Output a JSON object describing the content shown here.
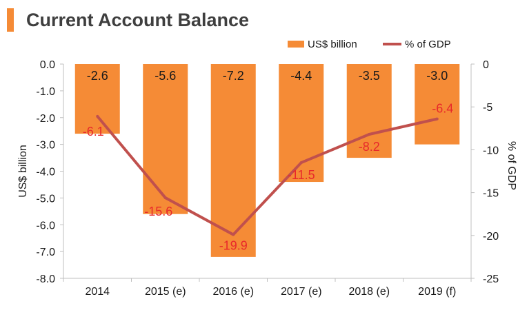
{
  "title": "Current Account Balance",
  "colors": {
    "bar": "#f58b36",
    "line": "#c0504d",
    "title_accent": "#f58b36",
    "line_label": "#e8282b",
    "text": "#1a1a1a",
    "axis": "#bfbfbf"
  },
  "chart_data": {
    "type": "bar",
    "categories": [
      "2014",
      "2015 (e)",
      "2016 (e)",
      "2017 (e)",
      "2018 (e)",
      "2019 (f)"
    ],
    "series": [
      {
        "name": "US$ billion",
        "type": "bar",
        "axis": "left",
        "values": [
          -2.6,
          -5.6,
          -7.2,
          -4.4,
          -3.5,
          -3.0
        ],
        "labels": [
          "-2.6",
          "-5.6",
          "-7.2",
          "-4.4",
          "-3.5",
          "-3.0"
        ]
      },
      {
        "name": "% of GDP",
        "type": "line",
        "axis": "right",
        "values": [
          -6.1,
          -15.6,
          -19.9,
          -11.5,
          -8.2,
          -6.4
        ],
        "labels": [
          "-6.1",
          "-15.6",
          "-19.9",
          "-11.5",
          "-8.2",
          "-6.4"
        ]
      }
    ],
    "ylabel": "US$ billion",
    "ylim": [
      -8.0,
      0.0
    ],
    "yticks": [
      "0.0",
      "-1.0",
      "-2.0",
      "-3.0",
      "-4.0",
      "-5.0",
      "-6.0",
      "-7.0",
      "-8.0"
    ],
    "y2label": "% of GDP",
    "y2lim": [
      -25,
      0
    ],
    "y2ticks": [
      "0",
      "-5",
      "-10",
      "-15",
      "-20",
      "-25"
    ],
    "legend": [
      "US$ billion",
      "% of GDP"
    ],
    "legend_position": "top-right",
    "grid": false
  }
}
